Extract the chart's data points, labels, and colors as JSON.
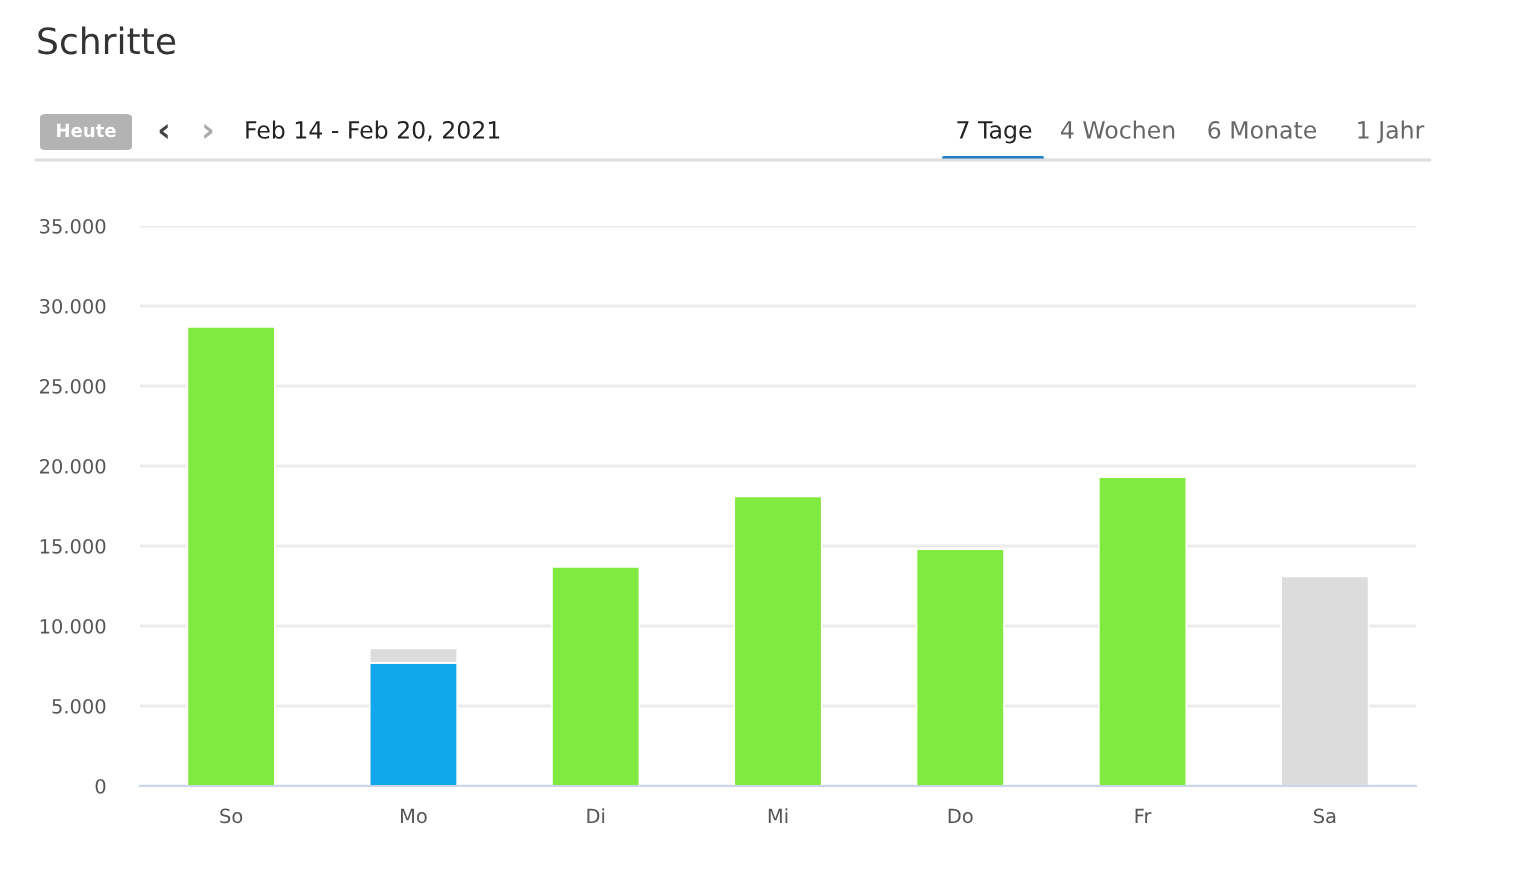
{
  "chart_data": {
    "type": "bar",
    "title": "Schritte",
    "annotations": [
      "Heute",
      "‹",
      "›",
      "Feb 14 - Feb 20, 2021",
      "7 Tage",
      "4 Wochen",
      "6 Monate",
      "1 Jahr"
    ],
    "categories": [
      "So",
      "Mo",
      "Di",
      "Mi",
      "Do",
      "Fr",
      "Sa"
    ],
    "stacked": true,
    "series": [
      {
        "colors": [
          "#80ea41",
          "#10a8eb",
          "#80ea41",
          "#80ea41",
          "#80ea41",
          "#80ea41",
          "#80ea41"
        ],
        "values": [
          28700,
          7700,
          13700,
          18100,
          14800,
          19300,
          null
        ]
      },
      {
        "color": "#dcdcdc",
        "values": [
          null,
          900,
          null,
          null,
          null,
          null,
          13100
        ]
      }
    ],
    "ylim": [
      0,
      35000
    ],
    "yticks": [
      {
        "value": 0,
        "label": "0"
      },
      {
        "value": 5000,
        "label": "5.000"
      },
      {
        "value": 10000,
        "label": "10.000"
      },
      {
        "value": 15000,
        "label": "15.000"
      },
      {
        "value": 20000,
        "label": "20.000"
      },
      {
        "value": 25000,
        "label": "25.000"
      },
      {
        "value": 30000,
        "label": "30.000"
      },
      {
        "value": 35000,
        "label": "35.000"
      }
    ],
    "grid": "y"
  }
}
